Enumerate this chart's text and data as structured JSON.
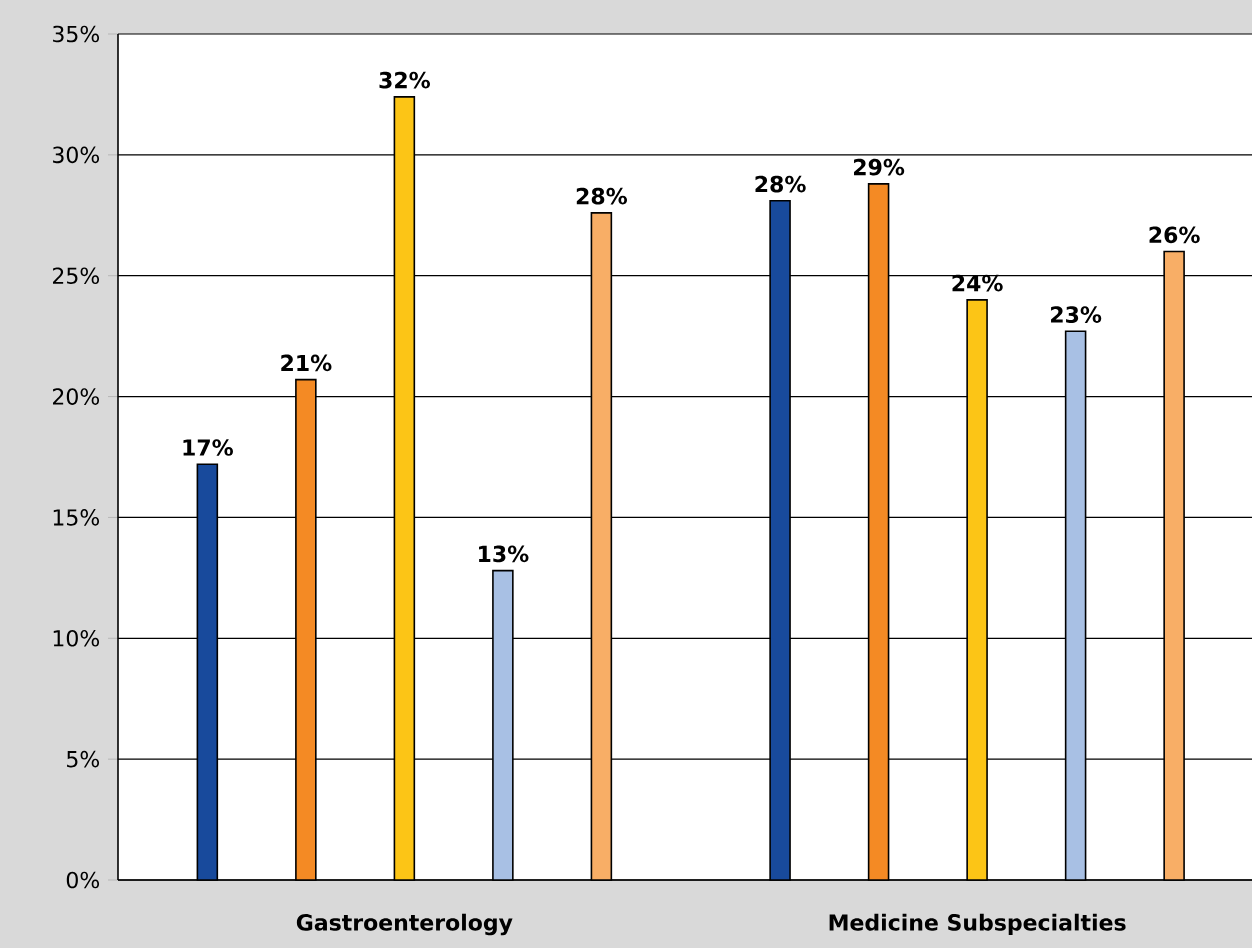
{
  "chart_data": {
    "type": "bar",
    "categories": [
      "Gastroenterology",
      "Medicine Subspecialties"
    ],
    "series": [
      {
        "color": "#184a9c",
        "values": [
          17.2,
          28.1
        ],
        "value_labels": [
          "17%",
          "28%"
        ]
      },
      {
        "color": "#f48a24",
        "values": [
          20.7,
          28.8
        ],
        "value_labels": [
          "21%",
          "29%"
        ]
      },
      {
        "color": "#fcc516",
        "values": [
          32.4,
          24.0
        ],
        "value_labels": [
          "32%",
          "24%"
        ]
      },
      {
        "color": "#a8c0e4",
        "values": [
          12.8,
          22.7
        ],
        "value_labels": [
          "13%",
          "23%"
        ]
      },
      {
        "color": "#f8ae66",
        "values": [
          27.6,
          26.0
        ],
        "value_labels": [
          "28%",
          "26%"
        ]
      }
    ],
    "ylim": [
      0,
      35
    ],
    "yticks": [
      {
        "value": 0,
        "label": "0%"
      },
      {
        "value": 5,
        "label": "5%"
      },
      {
        "value": 10,
        "label": "10%"
      },
      {
        "value": 15,
        "label": "15%"
      },
      {
        "value": 20,
        "label": "20%"
      },
      {
        "value": 25,
        "label": "25%"
      },
      {
        "value": 30,
        "label": "30%"
      },
      {
        "value": 35,
        "label": "35%"
      }
    ],
    "grid": "y"
  }
}
